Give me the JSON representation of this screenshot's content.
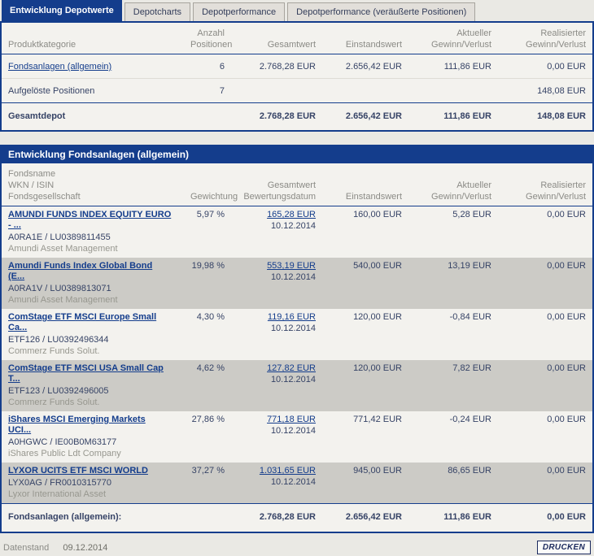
{
  "colors": {
    "navy": "#143d8c",
    "alt_row": "#cccbc6",
    "panel_bg": "#f3f2ee",
    "page_bg": "#eae9e4"
  },
  "tabs": [
    {
      "label": "Entwicklung Depotwerte",
      "active": true
    },
    {
      "label": "Depotcharts",
      "active": false
    },
    {
      "label": "Depotperformance",
      "active": false
    },
    {
      "label": "Depotperformance (veräußerte Positionen)",
      "active": false
    }
  ],
  "summary": {
    "headers": {
      "category": "Produktkategorie",
      "count": "Anzahl\nPositionen",
      "total": "Gesamtwert",
      "cost": "Einstandswert",
      "current": "Aktueller\nGewinn/Verlust",
      "realized": "Realisierter\nGewinn/Verlust"
    },
    "rows": [
      {
        "category": "Fondsanlagen (allgemein)",
        "count": "6",
        "total": "2.768,28 EUR",
        "cost": "2.656,42 EUR",
        "current": "111,86 EUR",
        "realized": "0,00 EUR"
      },
      {
        "category": "Aufgelöste Positionen",
        "count": "7",
        "total": "",
        "cost": "",
        "current": "",
        "realized": "148,08 EUR"
      }
    ],
    "total_row": {
      "label": "Gesamtdepot",
      "total": "2.768,28 EUR",
      "cost": "2.656,42 EUR",
      "current": "111,86 EUR",
      "realized": "148,08 EUR"
    }
  },
  "funds": {
    "title": "Entwicklung Fondsanlagen (allgemein)",
    "headers": {
      "name": "Fondsname\nWKN / ISIN\nFondsgesellschaft",
      "weight": "Gewichtung",
      "value": "Gesamtwert\nBewertungsdatum",
      "cost": "Einstandswert",
      "current": "Aktueller\nGewinn/Verlust",
      "realized": "Realisierter\nGewinn/Verlust"
    },
    "rows": [
      {
        "name": "AMUNDI FUNDS INDEX EQUITY EURO\n- ...",
        "wkn": "A0RA1E /  LU0389811455",
        "company": "Amundi Asset Management",
        "weight": "5,97 %",
        "value": "165,28 EUR",
        "date": "10.12.2014",
        "cost": "160,00 EUR",
        "current": "5,28 EUR",
        "realized": "0,00 EUR"
      },
      {
        "name": "Amundi Funds Index Global Bond\n(E...",
        "wkn": "A0RA1V /  LU0389813071",
        "company": "Amundi Asset Management",
        "weight": "19,98 %",
        "value": "553,19 EUR",
        "date": "10.12.2014",
        "cost": "540,00 EUR",
        "current": "13,19 EUR",
        "realized": "0,00 EUR"
      },
      {
        "name": "ComStage ETF MSCI Europe Small\nCa...",
        "wkn": "ETF126 /  LU0392496344",
        "company": "Commerz Funds Solut.",
        "weight": "4,30 %",
        "value": "119,16 EUR",
        "date": "10.12.2014",
        "cost": "120,00 EUR",
        "current": "-0,84 EUR",
        "realized": "0,00 EUR"
      },
      {
        "name": "ComStage ETF MSCI USA Small Cap\nT...",
        "wkn": "ETF123 /  LU0392496005",
        "company": "Commerz Funds Solut.",
        "weight": "4,62 %",
        "value": "127,82 EUR",
        "date": "10.12.2014",
        "cost": "120,00 EUR",
        "current": "7,82 EUR",
        "realized": "0,00 EUR"
      },
      {
        "name": "iShares MSCI Emerging Markets\nUCI...",
        "wkn": "A0HGWC /  IE00B0M63177",
        "company": "iShares Public Ldt Company",
        "weight": "27,86 %",
        "value": "771,18 EUR",
        "date": "10.12.2014",
        "cost": "771,42 EUR",
        "current": "-0,24 EUR",
        "realized": "0,00 EUR"
      },
      {
        "name": "LYXOR UCITS ETF MSCI WORLD",
        "wkn": "LYX0AG /  FR0010315770",
        "company": "Lyxor International Asset",
        "weight": "37,27 %",
        "value": "1.031,65 EUR",
        "date": "10.12.2014",
        "cost": "945,00 EUR",
        "current": "86,65 EUR",
        "realized": "0,00 EUR"
      }
    ],
    "footer": {
      "label": "Fondsanlagen (allgemein):",
      "total": "2.768,28 EUR",
      "cost": "2.656,42 EUR",
      "current": "111,86 EUR",
      "realized": "0,00 EUR"
    }
  },
  "statusbar": {
    "label": "Datenstand",
    "date": "09.12.2014",
    "print": "DRUCKEN"
  }
}
